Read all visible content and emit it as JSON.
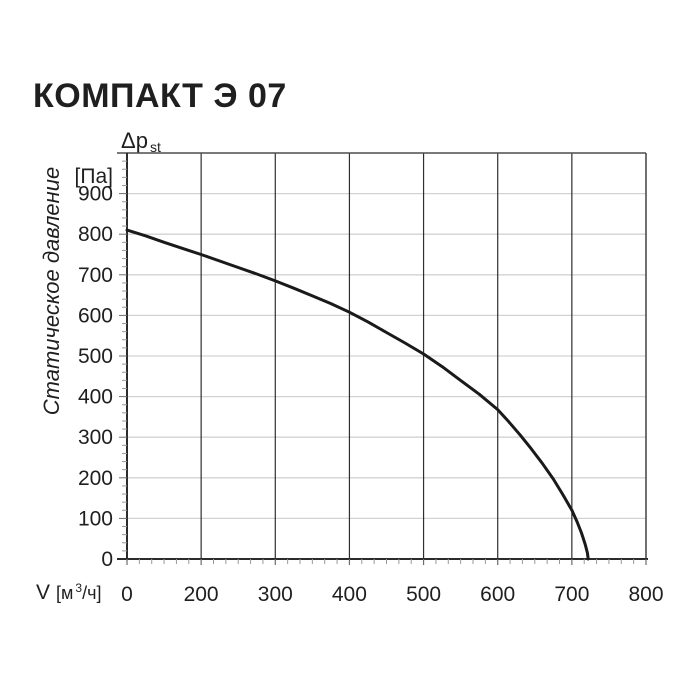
{
  "title": "КОМПАКТ Э 07",
  "axis_labels": {
    "pressure_symbol": "Δp",
    "pressure_symbol_sub": "st",
    "pressure_unit": "[Па]",
    "y_axis_title": "Статическое давление",
    "flow_symbol": "V",
    "flow_unit_open": "[м",
    "flow_unit_sup": "3",
    "flow_unit_close": "/ч]"
  },
  "chart_data": {
    "type": "line",
    "title": "КОМПАКТ Э 07",
    "xlabel": "V [м³/ч]",
    "ylabel": "Статическое давление Δp st [Па]",
    "x_tick_labels": [
      "0",
      "200",
      "300",
      "400",
      "500",
      "600",
      "700",
      "800"
    ],
    "y_tick_labels": [
      "0",
      "100",
      "200",
      "300",
      "400",
      "500",
      "600",
      "700",
      "800",
      "900"
    ],
    "ylim": [
      0,
      1000
    ],
    "x_minor_divisions_per_interval": 6,
    "y_minor_step": 20,
    "grid": true,
    "legend": "none",
    "series": [
      {
        "name": "Δp st (V)",
        "points": [
          [
            0,
            810
          ],
          [
            50,
            796
          ],
          [
            100,
            780
          ],
          [
            150,
            765
          ],
          [
            200,
            750
          ],
          [
            250,
            718
          ],
          [
            275,
            702
          ],
          [
            300,
            685
          ],
          [
            325,
            667
          ],
          [
            350,
            648
          ],
          [
            375,
            629
          ],
          [
            400,
            608
          ],
          [
            425,
            584
          ],
          [
            450,
            558
          ],
          [
            475,
            532
          ],
          [
            500,
            505
          ],
          [
            525,
            474
          ],
          [
            550,
            440
          ],
          [
            575,
            406
          ],
          [
            600,
            368
          ],
          [
            615,
            338
          ],
          [
            630,
            306
          ],
          [
            645,
            272
          ],
          [
            660,
            236
          ],
          [
            675,
            197
          ],
          [
            688,
            158
          ],
          [
            700,
            120
          ],
          [
            707,
            92
          ],
          [
            713,
            64
          ],
          [
            718,
            36
          ],
          [
            721,
            15
          ],
          [
            722,
            0
          ]
        ]
      }
    ],
    "colors": {
      "curve": "#1a1a1a",
      "vertical_grid": "#2f2f2f",
      "horizontal_grid": "#d2d2d2",
      "frame": "#4d4d4d",
      "axis": "#2b2b2b",
      "minor_tick": "#999999",
      "major_tick": "#6b6b6b",
      "text": "#1f1f1f"
    }
  }
}
